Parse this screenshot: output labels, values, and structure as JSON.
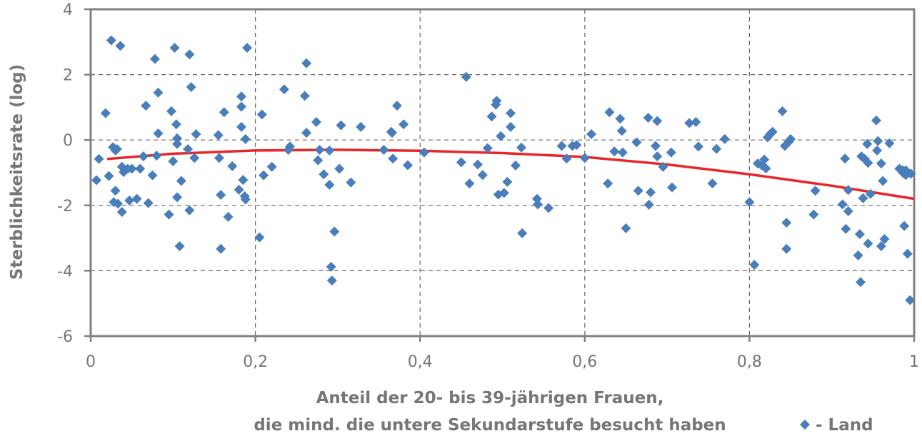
{
  "chart_data": {
    "type": "scatter",
    "ylabel": "Sterblichkeitsrate (log)",
    "xlabel_lines": [
      "Anteil der 20- bis 39-jährigen Frauen,",
      "die mind. die untere Sekundarstufe besucht haben"
    ],
    "xlim": [
      0,
      1
    ],
    "ylim": [
      -6,
      4
    ],
    "x_ticks": [
      0,
      0.2,
      0.4,
      0.6,
      0.8,
      1
    ],
    "x_tick_labels": [
      "0",
      "0,2",
      "0,4",
      "0,6",
      "0,8",
      "1"
    ],
    "y_ticks": [
      -6,
      -4,
      -2,
      0,
      2,
      4
    ],
    "y_tick_labels": [
      "-6",
      "-4",
      "-2",
      "0",
      "2",
      "4"
    ],
    "grid": true,
    "legend": {
      "placement": "bottom-right",
      "label": "- Land"
    },
    "colors": {
      "points": "#4a7ebb",
      "trend": "#e8262a",
      "axis": "#808080",
      "grid": "#666666",
      "text": "#767676"
    },
    "trend": {
      "x": [
        0.02,
        0.1,
        0.2,
        0.3,
        0.4,
        0.5,
        0.6,
        0.7,
        0.8,
        0.9,
        1.0
      ],
      "y": [
        -0.58,
        -0.42,
        -0.32,
        -0.3,
        -0.33,
        -0.4,
        -0.52,
        -0.75,
        -1.05,
        -1.4,
        -1.8
      ]
    },
    "series": [
      {
        "name": "- Land",
        "points": [
          [
            0.007,
            -1.23
          ],
          [
            0.01,
            -0.58
          ],
          [
            0.018,
            0.82
          ],
          [
            0.022,
            -1.1
          ],
          [
            0.025,
            3.05
          ],
          [
            0.027,
            -0.22
          ],
          [
            0.028,
            -1.9
          ],
          [
            0.03,
            -1.55
          ],
          [
            0.03,
            -0.32
          ],
          [
            0.032,
            -0.28
          ],
          [
            0.033,
            -1.95
          ],
          [
            0.036,
            2.88
          ],
          [
            0.038,
            -0.82
          ],
          [
            0.038,
            -2.2
          ],
          [
            0.04,
            -0.98
          ],
          [
            0.045,
            -0.88
          ],
          [
            0.047,
            -1.85
          ],
          [
            0.05,
            -0.88
          ],
          [
            0.056,
            -1.8
          ],
          [
            0.06,
            -0.88
          ],
          [
            0.064,
            -0.5
          ],
          [
            0.067,
            1.05
          ],
          [
            0.07,
            -1.93
          ],
          [
            0.075,
            -1.08
          ],
          [
            0.078,
            2.48
          ],
          [
            0.08,
            -0.48
          ],
          [
            0.082,
            1.45
          ],
          [
            0.082,
            0.2
          ],
          [
            0.095,
            -2.28
          ],
          [
            0.098,
            0.88
          ],
          [
            0.1,
            -0.65
          ],
          [
            0.102,
            2.82
          ],
          [
            0.104,
            0.48
          ],
          [
            0.105,
            0.05
          ],
          [
            0.105,
            -0.12
          ],
          [
            0.105,
            -1.75
          ],
          [
            0.108,
            -3.25
          ],
          [
            0.11,
            -1.25
          ],
          [
            0.118,
            -0.28
          ],
          [
            0.12,
            2.62
          ],
          [
            0.122,
            1.62
          ],
          [
            0.12,
            -2.15
          ],
          [
            0.126,
            -0.55
          ],
          [
            0.128,
            0.18
          ],
          [
            0.155,
            0.15
          ],
          [
            0.156,
            -0.55
          ],
          [
            0.158,
            -1.68
          ],
          [
            0.158,
            -3.33
          ],
          [
            0.162,
            0.85
          ],
          [
            0.167,
            -2.35
          ],
          [
            0.172,
            -0.8
          ],
          [
            0.18,
            -1.52
          ],
          [
            0.183,
            1.33
          ],
          [
            0.183,
            0.4
          ],
          [
            0.183,
            1.02
          ],
          [
            0.185,
            -1.22
          ],
          [
            0.187,
            -1.72
          ],
          [
            0.188,
            0.03
          ],
          [
            0.188,
            -1.82
          ],
          [
            0.19,
            2.82
          ],
          [
            0.205,
            -2.98
          ],
          [
            0.208,
            0.78
          ],
          [
            0.21,
            -1.08
          ],
          [
            0.22,
            -0.82
          ],
          [
            0.235,
            1.55
          ],
          [
            0.24,
            -0.3
          ],
          [
            0.242,
            -0.2
          ],
          [
            0.26,
            1.35
          ],
          [
            0.262,
            2.35
          ],
          [
            0.262,
            0.22
          ],
          [
            0.274,
            0.55
          ],
          [
            0.276,
            -0.62
          ],
          [
            0.278,
            -0.3
          ],
          [
            0.283,
            -1.05
          ],
          [
            0.29,
            -0.32
          ],
          [
            0.29,
            -1.37
          ],
          [
            0.292,
            -3.88
          ],
          [
            0.293,
            -4.3
          ],
          [
            0.296,
            -2.8
          ],
          [
            0.302,
            -0.88
          ],
          [
            0.304,
            0.45
          ],
          [
            0.316,
            -1.3
          ],
          [
            0.328,
            0.4
          ],
          [
            0.356,
            -0.3
          ],
          [
            0.365,
            0.25
          ],
          [
            0.366,
            0.22
          ],
          [
            0.367,
            -0.57
          ],
          [
            0.372,
            1.05
          ],
          [
            0.38,
            0.48
          ],
          [
            0.385,
            -0.77
          ],
          [
            0.405,
            -0.38
          ],
          [
            0.45,
            -0.68
          ],
          [
            0.456,
            1.93
          ],
          [
            0.46,
            -1.33
          ],
          [
            0.47,
            -0.75
          ],
          [
            0.476,
            -1.07
          ],
          [
            0.482,
            -0.25
          ],
          [
            0.487,
            0.72
          ],
          [
            0.492,
            1.08
          ],
          [
            0.493,
            1.2
          ],
          [
            0.495,
            -1.67
          ],
          [
            0.498,
            0.12
          ],
          [
            0.502,
            -1.62
          ],
          [
            0.506,
            -1.28
          ],
          [
            0.51,
            0.82
          ],
          [
            0.51,
            0.4
          ],
          [
            0.516,
            -0.78
          ],
          [
            0.523,
            -0.23
          ],
          [
            0.524,
            -2.85
          ],
          [
            0.542,
            -1.8
          ],
          [
            0.543,
            -1.97
          ],
          [
            0.556,
            -2.08
          ],
          [
            0.572,
            -0.18
          ],
          [
            0.578,
            -0.57
          ],
          [
            0.585,
            -0.18
          ],
          [
            0.59,
            -0.15
          ],
          [
            0.6,
            -0.55
          ],
          [
            0.608,
            0.18
          ],
          [
            0.628,
            -1.33
          ],
          [
            0.63,
            0.85
          ],
          [
            0.636,
            -0.35
          ],
          [
            0.643,
            0.65
          ],
          [
            0.645,
            0.28
          ],
          [
            0.646,
            -0.38
          ],
          [
            0.65,
            -2.7
          ],
          [
            0.663,
            -0.07
          ],
          [
            0.665,
            -1.55
          ],
          [
            0.677,
            0.68
          ],
          [
            0.678,
            -1.98
          ],
          [
            0.68,
            -1.6
          ],
          [
            0.686,
            -0.18
          ],
          [
            0.688,
            -0.5
          ],
          [
            0.688,
            0.58
          ],
          [
            0.695,
            -0.82
          ],
          [
            0.705,
            -0.38
          ],
          [
            0.706,
            -1.45
          ],
          [
            0.727,
            0.52
          ],
          [
            0.735,
            0.55
          ],
          [
            0.738,
            -0.2
          ],
          [
            0.755,
            -1.33
          ],
          [
            0.76,
            -0.27
          ],
          [
            0.77,
            0.03
          ],
          [
            0.8,
            -1.9
          ],
          [
            0.806,
            -3.82
          ],
          [
            0.81,
            -0.72
          ],
          [
            0.815,
            -0.78
          ],
          [
            0.818,
            -0.6
          ],
          [
            0.82,
            -0.87
          ],
          [
            0.822,
            0.08
          ],
          [
            0.825,
            0.18
          ],
          [
            0.828,
            0.25
          ],
          [
            0.84,
            0.88
          ],
          [
            0.843,
            -0.18
          ],
          [
            0.845,
            -2.53
          ],
          [
            0.845,
            -3.33
          ],
          [
            0.848,
            -0.05
          ],
          [
            0.85,
            0.03
          ],
          [
            0.878,
            -2.28
          ],
          [
            0.88,
            -1.55
          ],
          [
            0.913,
            -1.97
          ],
          [
            0.916,
            -0.57
          ],
          [
            0.917,
            -2.72
          ],
          [
            0.92,
            -2.18
          ],
          [
            0.92,
            -1.53
          ],
          [
            0.932,
            -3.53
          ],
          [
            0.934,
            -2.88
          ],
          [
            0.935,
            -4.35
          ],
          [
            0.936,
            -0.5
          ],
          [
            0.938,
            -1.78
          ],
          [
            0.94,
            -0.58
          ],
          [
            0.943,
            -0.12
          ],
          [
            0.944,
            -3.17
          ],
          [
            0.944,
            -0.7
          ],
          [
            0.947,
            -1.65
          ],
          [
            0.954,
            0.6
          ],
          [
            0.955,
            -0.32
          ],
          [
            0.956,
            -0.03
          ],
          [
            0.96,
            -0.72
          ],
          [
            0.96,
            -3.25
          ],
          [
            0.962,
            -1.25
          ],
          [
            0.964,
            -3.03
          ],
          [
            0.97,
            -0.1
          ],
          [
            0.982,
            -0.88
          ],
          [
            0.986,
            -0.92
          ],
          [
            0.987,
            -1.02
          ],
          [
            0.988,
            -2.63
          ],
          [
            0.99,
            -0.93
          ],
          [
            0.99,
            -1.07
          ],
          [
            0.992,
            -3.48
          ],
          [
            0.995,
            -4.9
          ],
          [
            0.996,
            -1.03
          ]
        ]
      }
    ]
  }
}
